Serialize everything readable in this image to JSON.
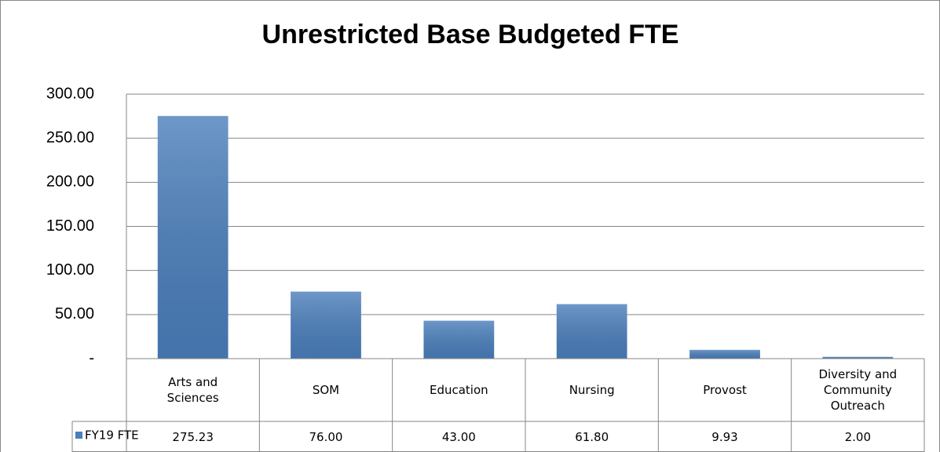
{
  "chart_data": {
    "type": "bar",
    "title": "Unrestricted Base Budgeted FTE",
    "categories": [
      "Arts and Sciences",
      "SOM",
      "Education",
      "Nursing",
      "Provost",
      "Diversity and Community Outreach"
    ],
    "series": [
      {
        "name": "FY19 FTE",
        "color": "#4a7ebb",
        "values": [
          275.23,
          76,
          43,
          61.8,
          9.93,
          2
        ],
        "value_labels": [
          "275.23",
          "76.00",
          "43.00",
          "61.80",
          "9.93",
          "2.00"
        ]
      }
    ],
    "ylim": [
      0,
      300
    ],
    "yticks": [
      {
        "value": 0,
        "label": "-"
      },
      {
        "value": 50,
        "label": "50.00"
      },
      {
        "value": 100,
        "label": "100.00"
      },
      {
        "value": 150,
        "label": "150.00"
      },
      {
        "value": 200,
        "label": "200.00"
      },
      {
        "value": 250,
        "label": "250.00"
      },
      {
        "value": 300,
        "label": "300.00"
      }
    ],
    "grid": true,
    "data_table": true
  }
}
